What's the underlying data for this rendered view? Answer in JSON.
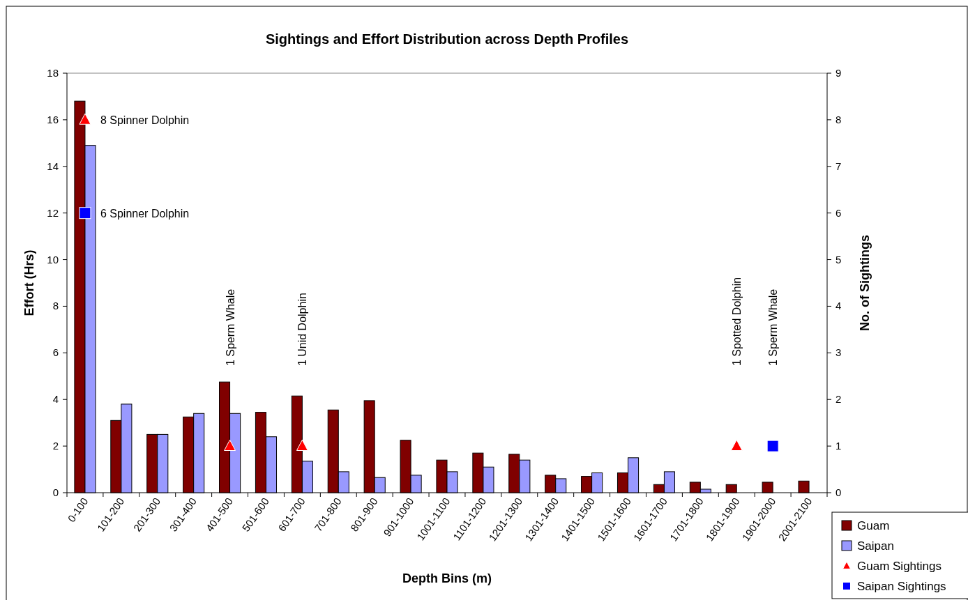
{
  "chart_data": {
    "type": "bar",
    "title": "Sightings and Effort Distribution across Depth Profiles",
    "xlabel": "Depth Bins (m)",
    "ylabel": "Effort (Hrs)",
    "y2label": "No. of Sightings",
    "categories": [
      "0-100",
      "101-200",
      "201-300",
      "301-400",
      "401-500",
      "501-600",
      "601-700",
      "701-800",
      "801-900",
      "901-1000",
      "1001-1100",
      "1101-1200",
      "1201-1300",
      "1301-1400",
      "1401-1500",
      "1501-1600",
      "1601-1700",
      "1701-1800",
      "1801-1900",
      "1901-2000",
      "2001-2100"
    ],
    "series": [
      {
        "name": "Guam",
        "color": "#800000",
        "values": [
          16.8,
          3.1,
          2.5,
          3.25,
          4.75,
          3.45,
          4.15,
          3.55,
          3.95,
          2.25,
          1.4,
          1.7,
          1.65,
          0.75,
          0.7,
          0.85,
          0.35,
          0.45,
          0.35,
          0.45,
          0.5
        ]
      },
      {
        "name": "Saipan",
        "color": "#9999ff",
        "values": [
          14.9,
          3.8,
          2.5,
          3.4,
          3.4,
          2.4,
          1.35,
          0.9,
          0.65,
          0.75,
          0.9,
          1.1,
          1.4,
          0.6,
          0.85,
          1.5,
          0.9,
          0.15,
          null,
          null,
          null
        ]
      },
      {
        "name": "Guam Sightings",
        "type": "scatter",
        "axis": "y2",
        "marker": "triangle",
        "color": "#ff0000",
        "values": [
          8,
          null,
          null,
          null,
          1,
          null,
          1,
          null,
          null,
          null,
          null,
          null,
          null,
          null,
          null,
          null,
          null,
          null,
          1,
          null,
          null
        ]
      },
      {
        "name": "Saipan Sightings",
        "type": "scatter",
        "axis": "y2",
        "marker": "square",
        "color": "#0000ff",
        "values": [
          6,
          null,
          null,
          null,
          null,
          null,
          null,
          null,
          null,
          null,
          null,
          null,
          null,
          null,
          null,
          null,
          null,
          null,
          null,
          1,
          null
        ]
      }
    ],
    "ylim": [
      0,
      18
    ],
    "yticks": [
      0,
      2,
      4,
      6,
      8,
      10,
      12,
      14,
      16,
      18
    ],
    "y2lim": [
      0,
      9
    ],
    "y2ticks": [
      0,
      1,
      2,
      3,
      4,
      5,
      6,
      7,
      8,
      9
    ],
    "annotations": [
      "8 Spinner Dolphin",
      "1 Sperm Whale",
      "1 Unid Dolphin",
      "1 Spotted Dolphin",
      "6 Spinner Dolphin",
      "1 Sperm Whale"
    ],
    "legend": "bottom right",
    "grid": false
  }
}
